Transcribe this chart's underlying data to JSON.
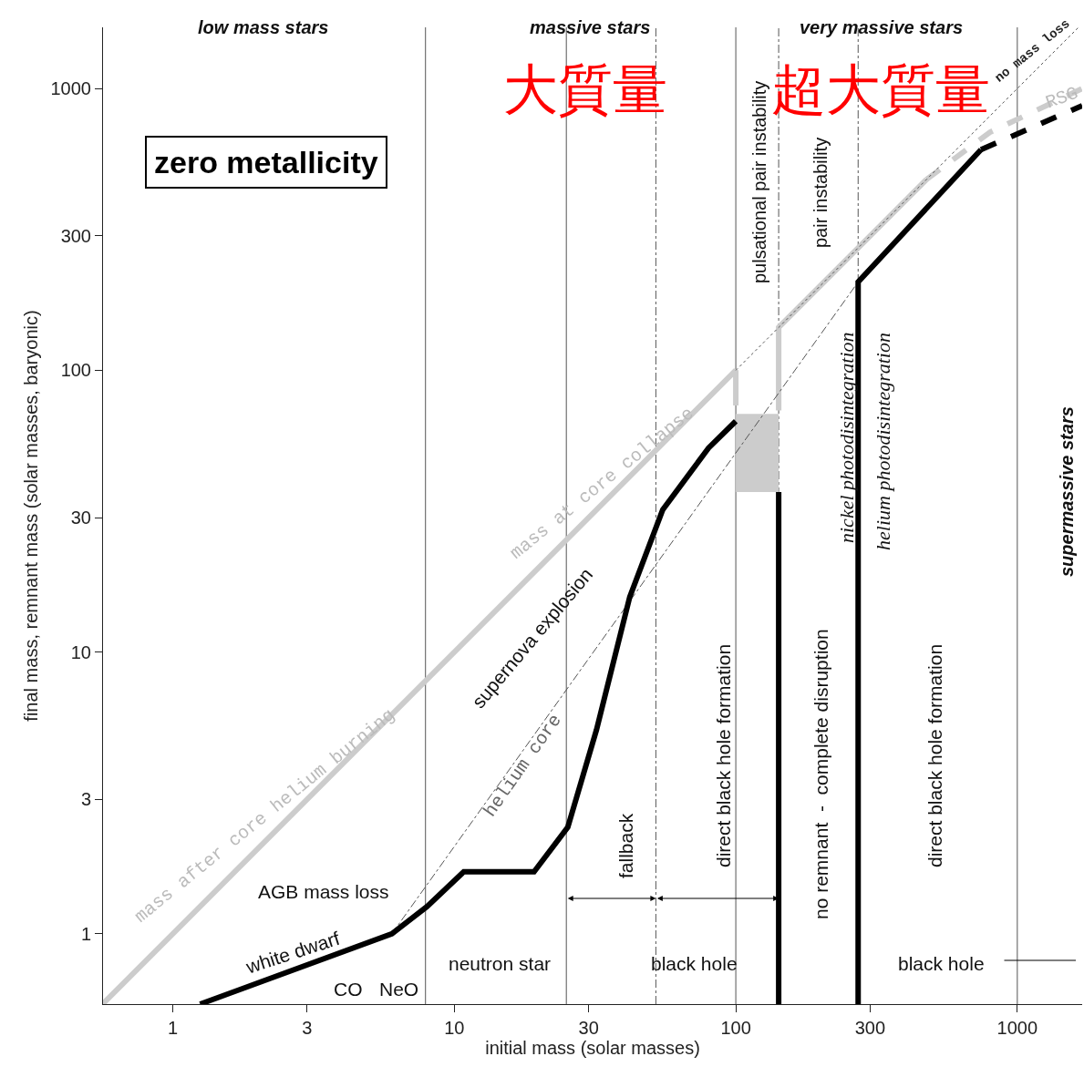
{
  "chart_data": {
    "type": "line",
    "xlabel": "initial mass (solar masses)",
    "ylabel": "final mass, remnant mass (solar masses, baryonic)",
    "log": "xy",
    "grid": false,
    "marker": "none",
    "xlim": [
      0.565,
      1700
    ],
    "ylim": [
      0.563,
      1650
    ],
    "xticks": [
      1,
      3,
      10,
      30,
      100,
      300,
      1000
    ],
    "yticks": [
      1,
      3,
      10,
      30,
      100,
      300,
      1000
    ],
    "series": [
      {
        "color": "#cccccc",
        "x": [
          0.565,
          100,
          100
        ],
        "values": [
          0.565,
          100,
          75
        ],
        "line_style": "solid"
      },
      {
        "color": "#cccccc",
        "x": [
          142,
          142,
          476
        ],
        "values": [
          72,
          142,
          476
        ],
        "line_style": "solid"
      },
      {
        "color": "#cccccc",
        "x": [
          476,
          800,
          1700
        ],
        "values": [
          476,
          700,
          1000
        ],
        "line_style": "dashed"
      },
      {
        "color": "#555555",
        "x": [
          100,
          1650
        ],
        "values": [
          100,
          1650
        ],
        "line_style": "dotted"
      },
      {
        "color": "#555555",
        "x": [
          6,
          272
        ],
        "values": [
          1,
          206
        ],
        "line_style": "dashed"
      },
      {
        "type": "bar",
        "color": "#cccccc",
        "x": [
          121
        ],
        "values": [
          33
        ],
        "base": [
          37
        ]
      },
      {
        "color": "#000000",
        "x": [
          1.25,
          6.0,
          8.0,
          10.8,
          19.2,
          25.3,
          32,
          42,
          55,
          80,
          100
        ],
        "values": [
          0.563,
          1,
          1.25,
          1.66,
          1.66,
          2.39,
          5.3,
          15.7,
          32,
          53,
          66
        ],
        "line_style": "solid"
      },
      {
        "color": "#000000",
        "x": [
          142,
          142
        ],
        "values": [
          37,
          0.563
        ],
        "line_style": "solid"
      },
      {
        "color": "#000000",
        "x": [
          272,
          272,
          743
        ],
        "values": [
          0.563,
          206,
          607
        ],
        "line_style": "solid"
      },
      {
        "color": "#000000",
        "x": [
          743,
          1700
        ],
        "values": [
          607,
          870
        ],
        "line_style": "dashed"
      }
    ],
    "ref_lines": [
      {
        "axis": "x",
        "value": 7.9,
        "line_style": "solid",
        "color": "#555555"
      },
      {
        "axis": "x",
        "value": 25,
        "line_style": "solid",
        "color": "#555555"
      },
      {
        "axis": "x",
        "value": 52,
        "line_style": "dashed",
        "color": "#555555"
      },
      {
        "axis": "x",
        "value": 100,
        "line_style": "solid",
        "color": "#555555"
      },
      {
        "axis": "x",
        "value": 142,
        "line_style": "dashed",
        "color": "#555555"
      },
      {
        "axis": "x",
        "value": 272,
        "line_style": "dashed",
        "color": "#555555"
      },
      {
        "axis": "x",
        "value": 1000,
        "line_style": "solid",
        "color": "#555555"
      }
    ],
    "annotations": [
      "low mass stars",
      "massive stars",
      "very massive stars",
      "大質量",
      "超大質量",
      "zero metallicity",
      "pulsational pair instability",
      "pair instability",
      "nickel photodisintegration",
      "helium photodisintegration",
      "supermassive stars",
      "direct black hole formation",
      "direct black hole formation",
      "no remnant  -  complete disruption",
      "fallback",
      "supernova explosion",
      "helium core",
      "mass at core collapse",
      "mass after core helium burning",
      "no mass loss",
      "RSG",
      "white dwarf",
      "AGB mass loss",
      "CO",
      "NeO",
      "neutron star",
      "black hole",
      "black hole"
    ]
  }
}
